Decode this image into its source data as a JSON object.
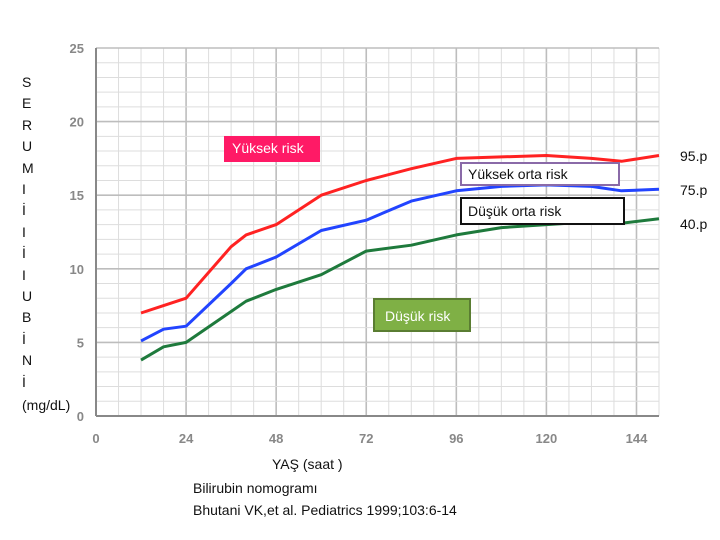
{
  "chart_data": {
    "type": "line",
    "xticks": [
      "0",
      "24",
      "48",
      "72",
      "96",
      "120",
      "144"
    ],
    "yticks": [
      "0",
      "5",
      "10",
      "15",
      "20",
      "25"
    ],
    "xlim": [
      0,
      150
    ],
    "ylim": [
      0,
      25
    ],
    "grid": true,
    "series": [
      {
        "name": "95.p",
        "color": "#ff2222",
        "x": [
          12,
          18,
          24,
          36,
          40,
          48,
          60,
          72,
          84,
          96,
          108,
          120,
          132,
          140,
          150
        ],
        "y": [
          7.0,
          7.5,
          8.0,
          11.5,
          12.3,
          13.0,
          15.0,
          16.0,
          16.8,
          17.5,
          17.6,
          17.7,
          17.5,
          17.3,
          17.7
        ]
      },
      {
        "name": "75.p",
        "color": "#2244ff",
        "x": [
          12,
          18,
          24,
          36,
          40,
          48,
          60,
          72,
          84,
          96,
          108,
          120,
          132,
          140,
          150
        ],
        "y": [
          5.1,
          5.9,
          6.1,
          9.0,
          10.0,
          10.8,
          12.6,
          13.3,
          14.6,
          15.3,
          15.6,
          15.7,
          15.6,
          15.3,
          15.4
        ]
      },
      {
        "name": "40.p",
        "color": "#1e7a3c",
        "x": [
          12,
          18,
          24,
          36,
          40,
          48,
          60,
          72,
          84,
          96,
          108,
          120,
          132,
          140,
          150
        ],
        "y": [
          3.8,
          4.7,
          5.0,
          7.1,
          7.8,
          8.6,
          9.6,
          11.2,
          11.6,
          12.3,
          12.8,
          13.0,
          13.2,
          13.1,
          13.4
        ]
      }
    ]
  },
  "ylabel_letters": [
    "S",
    "E",
    "R",
    "U",
    "M",
    "I",
    "İ",
    "I",
    "İ",
    "I",
    "U",
    "B",
    "İ",
    "N",
    "İ"
  ],
  "unit": "(mg/dL)",
  "xlabel": "YAŞ (saat )",
  "caption_title": "Bilirubin nomogramı",
  "caption_source": "Bhutani VK,et al. Pediatrics 1999;103:6-14",
  "zone_labels": {
    "high": "Yüksek risk",
    "high_mid": "Yüksek orta risk",
    "low_mid": "Düşük orta risk",
    "low": "Düşük risk"
  },
  "right_labels": [
    "95.p",
    "75.p",
    "40.p"
  ],
  "colors": {
    "high_tag": "#ff1a66",
    "low_tag": "#7fb045",
    "grid": "#c8c8c8"
  }
}
